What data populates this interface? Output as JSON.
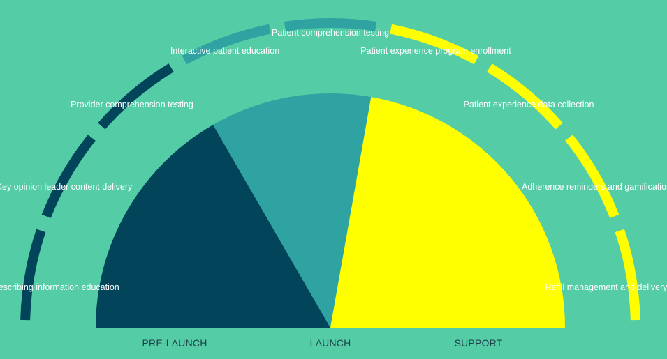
{
  "colors": {
    "background": "#54cca6",
    "pre_launch": "#02445a",
    "launch": "#2fa2a2",
    "support": "#ffff00"
  },
  "phases": [
    {
      "key": "pre_launch",
      "label": "PRE-LAUNCH"
    },
    {
      "key": "launch",
      "label": "LAUNCH"
    },
    {
      "key": "support",
      "label": "SUPPORT"
    }
  ],
  "chart_data": {
    "type": "pie",
    "categories": [
      "PRE-LAUNCH",
      "LAUNCH",
      "SUPPORT"
    ],
    "values": [
      60,
      40,
      80
    ],
    "outer_segments": [
      {
        "label": "Prescribing information education",
        "phase": "pre_launch"
      },
      {
        "label": "Key opinion leader content delivery",
        "phase": "pre_launch"
      },
      {
        "label": "Provider comprehension testing",
        "phase": "pre_launch"
      },
      {
        "label": "Interactive patient education",
        "phase": "launch"
      },
      {
        "label": "Patient comprehension testing",
        "phase": "launch"
      },
      {
        "label": "Patient experience program enrollment",
        "phase": "support"
      },
      {
        "label": "Patient experience data collection",
        "phase": "support"
      },
      {
        "label": "Adherence reminders and gamification",
        "phase": "support"
      },
      {
        "label": "Refill management and delivery",
        "phase": "support"
      }
    ]
  }
}
